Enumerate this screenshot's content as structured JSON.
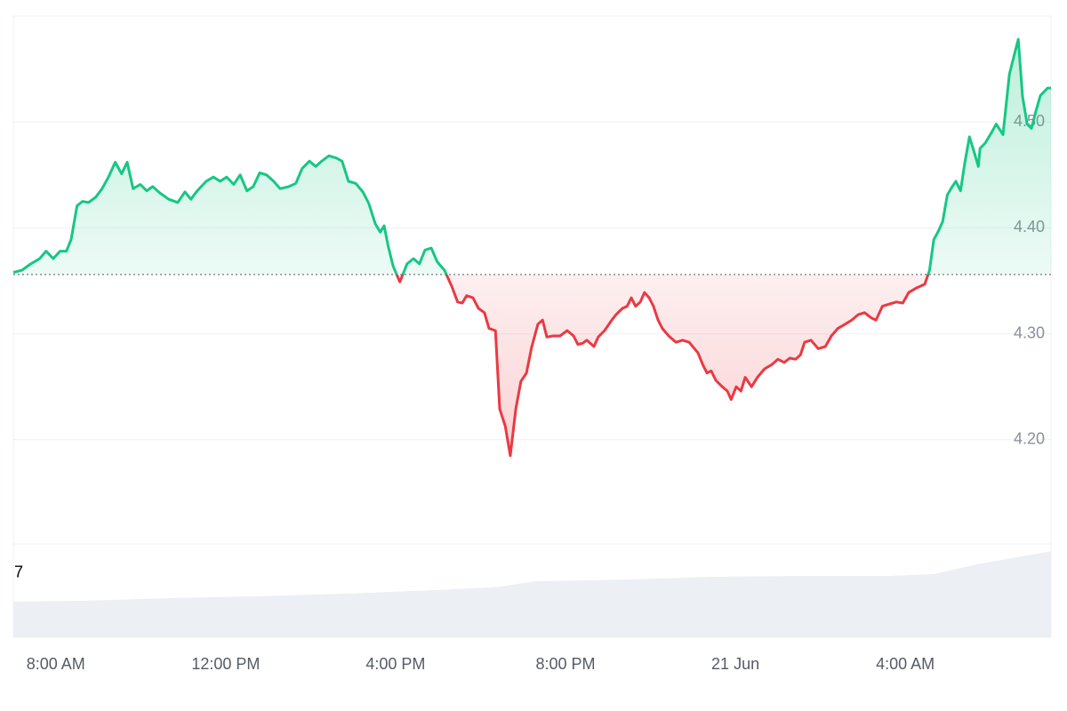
{
  "chart_data": {
    "type": "line",
    "x": [
      7.0,
      7.2,
      7.41,
      7.62,
      7.77,
      7.94,
      8.1,
      8.25,
      8.36,
      8.5,
      8.63,
      8.77,
      8.94,
      9.09,
      9.24,
      9.4,
      9.55,
      9.68,
      9.82,
      9.99,
      10.14,
      10.28,
      10.45,
      10.66,
      10.87,
      11.04,
      11.18,
      11.33,
      11.54,
      11.71,
      11.87,
      12.02,
      12.19,
      12.34,
      12.5,
      12.65,
      12.8,
      12.96,
      13.13,
      13.28,
      13.49,
      13.65,
      13.8,
      13.97,
      14.12,
      14.26,
      14.43,
      14.6,
      14.74,
      14.89,
      15.06,
      15.23,
      15.37,
      15.52,
      15.64,
      15.73,
      15.83,
      15.94,
      16.1,
      16.27,
      16.42,
      16.56,
      16.69,
      16.84,
      16.98,
      17.15,
      17.32,
      17.46,
      17.57,
      17.67,
      17.82,
      17.95,
      18.09,
      18.2,
      18.35,
      18.45,
      18.58,
      18.7,
      18.83,
      18.95,
      19.08,
      19.2,
      19.35,
      19.46,
      19.56,
      19.71,
      19.87,
      20.04,
      20.19,
      20.29,
      20.4,
      20.5,
      20.67,
      20.77,
      20.92,
      21.09,
      21.19,
      21.34,
      21.45,
      21.55,
      21.65,
      21.76,
      21.86,
      21.97,
      22.07,
      22.18,
      22.28,
      22.43,
      22.6,
      22.76,
      22.91,
      23.12,
      23.23,
      23.33,
      23.43,
      23.54,
      23.69,
      23.81,
      23.9,
      24.02,
      24.13,
      24.23,
      24.38,
      24.52,
      24.69,
      24.86,
      25.0,
      25.15,
      25.28,
      25.42,
      25.53,
      25.63,
      25.78,
      25.95,
      26.12,
      26.26,
      26.41,
      26.58,
      26.74,
      26.89,
      27.04,
      27.2,
      27.31,
      27.46,
      27.62,
      27.79,
      27.94,
      28.08,
      28.25,
      28.36,
      28.46,
      28.57,
      28.67,
      28.78,
      28.88,
      28.99,
      29.09,
      29.19,
      29.3,
      29.4,
      29.51,
      29.61,
      29.72,
      29.76,
      29.88,
      30.03,
      30.14,
      30.3,
      30.45,
      30.55,
      30.66,
      30.76,
      30.87,
      30.97,
      31.08,
      31.18,
      31.35,
      31.43
    ],
    "values": [
      4.358,
      4.36,
      4.366,
      4.371,
      4.378,
      4.371,
      4.378,
      4.378,
      4.389,
      4.421,
      4.425,
      4.424,
      4.429,
      4.437,
      4.448,
      4.462,
      4.451,
      4.462,
      4.437,
      4.441,
      4.435,
      4.439,
      4.433,
      4.427,
      4.424,
      4.434,
      4.427,
      4.435,
      4.444,
      4.448,
      4.444,
      4.448,
      4.441,
      4.45,
      4.435,
      4.439,
      4.452,
      4.45,
      4.444,
      4.437,
      4.439,
      4.442,
      4.456,
      4.463,
      4.458,
      4.463,
      4.468,
      4.466,
      4.463,
      4.444,
      4.442,
      4.434,
      4.423,
      4.404,
      4.396,
      4.402,
      4.382,
      4.364,
      4.349,
      4.366,
      4.371,
      4.366,
      4.379,
      4.381,
      4.368,
      4.36,
      4.345,
      4.33,
      4.329,
      4.336,
      4.334,
      4.324,
      4.32,
      4.305,
      4.303,
      4.229,
      4.213,
      4.185,
      4.229,
      4.255,
      4.263,
      4.287,
      4.309,
      4.313,
      4.297,
      4.298,
      4.298,
      4.303,
      4.298,
      4.29,
      4.291,
      4.294,
      4.288,
      4.297,
      4.303,
      4.313,
      4.318,
      4.324,
      4.326,
      4.334,
      4.326,
      4.33,
      4.339,
      4.334,
      4.326,
      4.313,
      4.305,
      4.298,
      4.292,
      4.294,
      4.292,
      4.282,
      4.271,
      4.263,
      4.265,
      4.256,
      4.25,
      4.246,
      4.238,
      4.25,
      4.246,
      4.259,
      4.25,
      4.259,
      4.267,
      4.271,
      4.276,
      4.273,
      4.277,
      4.276,
      4.28,
      4.292,
      4.294,
      4.286,
      4.288,
      4.298,
      4.305,
      4.309,
      4.313,
      4.318,
      4.32,
      4.315,
      4.313,
      4.326,
      4.328,
      4.33,
      4.329,
      4.339,
      4.343,
      4.345,
      4.347,
      4.36,
      4.389,
      4.397,
      4.406,
      4.431,
      4.438,
      4.444,
      4.435,
      4.461,
      4.486,
      4.473,
      4.458,
      4.475,
      4.48,
      4.49,
      4.498,
      4.488,
      4.545,
      4.561,
      4.578,
      4.524,
      4.498,
      4.494,
      4.511,
      4.525,
      4.532,
      4.532
    ],
    "baseline": 4.356,
    "color_up": "#16c784",
    "color_down": "#ea3943",
    "xlim": [
      7,
      31.43
    ],
    "ylim": [
      4.1,
      4.6
    ],
    "xticks": [
      {
        "value": 8,
        "label": "8:00 AM"
      },
      {
        "value": 12,
        "label": "12:00 PM"
      },
      {
        "value": 16,
        "label": "4:00 PM"
      },
      {
        "value": 20,
        "label": "8:00 PM"
      },
      {
        "value": 24,
        "label": "21 Jun"
      },
      {
        "value": 28,
        "label": "4:00 AM"
      }
    ],
    "yticks": [
      {
        "value": 4.2,
        "label": "4.20"
      },
      {
        "value": 4.3,
        "label": "4.30"
      },
      {
        "value": 4.4,
        "label": "4.40"
      },
      {
        "value": 4.5,
        "label": "4.50"
      }
    ],
    "grid": true,
    "volume": {
      "x": [
        7.0,
        8.77,
        10.87,
        12.96,
        15.06,
        17.15,
        18.41,
        19.25,
        21.34,
        23.43,
        25.53,
        27.62,
        28.67,
        29.72,
        31.43
      ],
      "values": [
        3.9,
        4.0,
        4.3,
        4.5,
        4.8,
        5.2,
        5.5,
        6.1,
        6.3,
        6.6,
        6.7,
        6.7,
        6.9,
        8.0,
        9.4
      ],
      "ylim": [
        0,
        10.2
      ],
      "yticks": [
        7
      ],
      "color": "#eceff3"
    }
  }
}
